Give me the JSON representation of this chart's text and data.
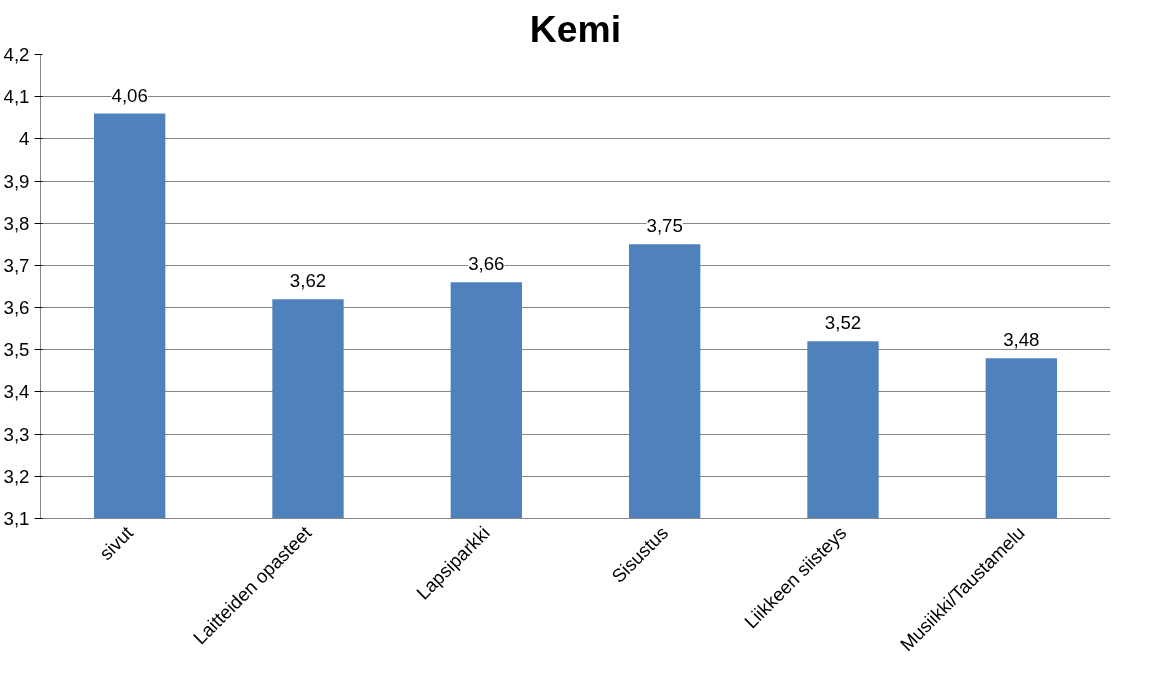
{
  "chart_data": {
    "type": "bar",
    "title": "Kemi",
    "categories": [
      "sivut",
      "Laitteiden opasteet",
      "Lapsiparkki",
      "Sisustus",
      "Liikkeen siisteys",
      "Musiikki/Taustamelu"
    ],
    "values": [
      4.06,
      3.62,
      3.66,
      3.75,
      3.52,
      3.48
    ],
    "value_labels": [
      "4,06",
      "3,62",
      "3,66",
      "3,75",
      "3,52",
      "3,48"
    ],
    "color": "#4f81bd",
    "ylim": [
      3.1,
      4.2
    ],
    "yticks": [
      {
        "value": 3.1,
        "label": "3,1"
      },
      {
        "value": 3.2,
        "label": "3,2"
      },
      {
        "value": 3.3,
        "label": "3,3"
      },
      {
        "value": 3.4,
        "label": "3,4"
      },
      {
        "value": 3.5,
        "label": "3,5"
      },
      {
        "value": 3.6,
        "label": "3,6"
      },
      {
        "value": 3.7,
        "label": "3,7"
      },
      {
        "value": 3.8,
        "label": "3,8"
      },
      {
        "value": 3.9,
        "label": "3,9"
      },
      {
        "value": 4,
        "label": "4"
      },
      {
        "value": 4.1,
        "label": "4,1"
      },
      {
        "value": 4.2,
        "label": "4,2"
      }
    ],
    "grid": "y"
  }
}
